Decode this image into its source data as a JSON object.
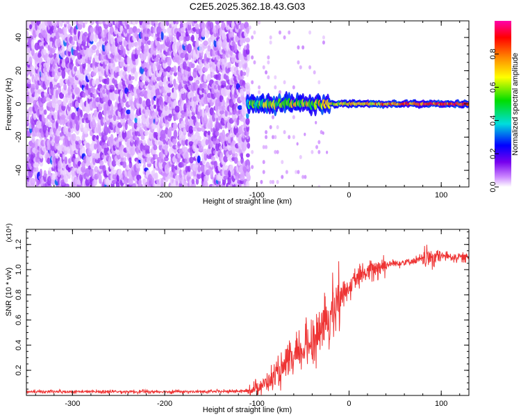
{
  "page": {
    "title": "C2E5.2025.362.18.43.G03"
  },
  "chart_data": [
    {
      "type": "heatmap",
      "title": "C2E5.2025.362.18.43.G03",
      "xlabel": "Height of straight line (km)",
      "ylabel": "Frequency (Hz)",
      "xlim": [
        -350,
        130
      ],
      "ylim": [
        -50,
        50
      ],
      "xticks": [
        -300,
        -200,
        -100,
        0,
        100
      ],
      "yticks": [
        -40,
        -20,
        0,
        20,
        40
      ],
      "colorbar": {
        "label": "Normalized spectral amplitude",
        "range": [
          0.0,
          1.0
        ],
        "ticks": [
          0.0,
          0.2,
          0.4,
          0.6,
          0.8
        ],
        "colormap": [
          "#ffffff",
          "#cc88ff",
          "#7700ee",
          "#0000ff",
          "#00dddd",
          "#00dd00",
          "#ffff00",
          "#ff8800",
          "#ff0000",
          "#ff00aa"
        ]
      },
      "features": {
        "noise_region_x": [
          -350,
          -110
        ],
        "signal_line_frequency": 0,
        "signal_onset_x": -110
      }
    },
    {
      "type": "line",
      "xlabel": "Height of straight line (km)",
      "ylabel": "SNR (10 * v/v)",
      "y_multiplier_label": "(x10⁴)",
      "xlim": [
        -350,
        130
      ],
      "ylim": [
        0,
        1.32
      ],
      "xticks": [
        -300,
        -200,
        -100,
        0,
        100
      ],
      "yticks": [
        0.2,
        0.4,
        0.6,
        0.8,
        1.0,
        1.2
      ],
      "line_color": "#ee3333",
      "series": [
        {
          "x": [
            -350,
            -300,
            -250,
            -200,
            -150,
            -110,
            -95,
            -80,
            -65,
            -55,
            -45,
            -35,
            -25,
            -15,
            -10,
            0,
            10,
            20,
            30,
            40,
            60,
            80,
            90,
            100,
            115,
            130
          ],
          "values": [
            0.03,
            0.03,
            0.03,
            0.03,
            0.03,
            0.035,
            0.08,
            0.15,
            0.25,
            0.32,
            0.4,
            0.48,
            0.58,
            0.7,
            0.8,
            0.86,
            0.93,
            0.98,
            1.02,
            1.04,
            1.06,
            1.08,
            1.1,
            1.11,
            1.1,
            1.1
          ]
        }
      ]
    }
  ]
}
